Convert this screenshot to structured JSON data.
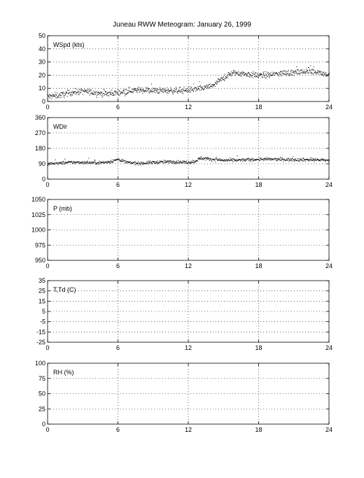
{
  "title": "Juneau RWW Meteogram:    January 26, 1999",
  "chart_data": [
    {
      "type": "scatter",
      "label": "WSpd (kts)",
      "ylim": [
        0,
        50
      ],
      "yticks": [
        0,
        10,
        20,
        30,
        40,
        50
      ],
      "xlim": [
        0,
        24
      ],
      "xticks": [
        0,
        6,
        12,
        18,
        24
      ],
      "grid": true,
      "color": "#000000",
      "trend": [
        [
          0,
          4
        ],
        [
          1,
          5
        ],
        [
          2,
          7
        ],
        [
          3,
          8
        ],
        [
          4,
          7
        ],
        [
          5,
          6
        ],
        [
          6,
          7
        ],
        [
          7,
          8.5
        ],
        [
          8,
          9
        ],
        [
          9,
          8.5
        ],
        [
          10,
          8.5
        ],
        [
          11,
          8.5
        ],
        [
          12,
          9
        ],
        [
          13,
          10
        ],
        [
          14,
          12
        ],
        [
          15,
          18
        ],
        [
          15.5,
          21
        ],
        [
          16,
          22
        ],
        [
          17,
          21
        ],
        [
          18,
          20
        ],
        [
          19,
          20.5
        ],
        [
          20,
          22
        ],
        [
          21,
          22
        ],
        [
          22,
          23
        ],
        [
          23,
          23
        ],
        [
          24,
          20
        ]
      ],
      "spread": 2.2
    },
    {
      "type": "scatter",
      "label": "WDir",
      "ylim": [
        0,
        360
      ],
      "yticks": [
        0,
        90,
        180,
        270,
        360
      ],
      "xlim": [
        0,
        24
      ],
      "xticks": [
        0,
        6,
        12,
        18,
        24
      ],
      "grid": true,
      "color": "#000000",
      "trend": [
        [
          0,
          92
        ],
        [
          1,
          95
        ],
        [
          2,
          100
        ],
        [
          3,
          100
        ],
        [
          4,
          98
        ],
        [
          5,
          100
        ],
        [
          5.5,
          108
        ],
        [
          6,
          118
        ],
        [
          6.5,
          105
        ],
        [
          7,
          97
        ],
        [
          8,
          95
        ],
        [
          9,
          100
        ],
        [
          10,
          103
        ],
        [
          11,
          103
        ],
        [
          12,
          100
        ],
        [
          12.5,
          105
        ],
        [
          13,
          125
        ],
        [
          14,
          118
        ],
        [
          15,
          112
        ],
        [
          16,
          112
        ],
        [
          17,
          115
        ],
        [
          18,
          118
        ],
        [
          19,
          118
        ],
        [
          20,
          117
        ],
        [
          21,
          116
        ],
        [
          22,
          116
        ],
        [
          23,
          115
        ],
        [
          24,
          112
        ]
      ],
      "spread": 9
    },
    {
      "type": "scatter",
      "label": "P (mb)",
      "ylim": [
        950,
        1050
      ],
      "yticks": [
        950,
        975,
        1000,
        1025,
        1050
      ],
      "xlim": [
        0,
        24
      ],
      "xticks": [
        0,
        6,
        12,
        18,
        24
      ],
      "grid": true
    },
    {
      "type": "scatter",
      "label": "T,Td (C)",
      "ylim": [
        -25,
        35
      ],
      "yticks": [
        -25,
        -15,
        -5,
        5,
        15,
        25,
        35
      ],
      "xlim": [
        0,
        24
      ],
      "xticks": [
        0,
        6,
        12,
        18,
        24
      ],
      "grid": true
    },
    {
      "type": "scatter",
      "label": "RH (%)",
      "ylim": [
        0,
        100
      ],
      "yticks": [
        0,
        25,
        50,
        75,
        100
      ],
      "xlim": [
        0,
        24
      ],
      "xticks": [
        0,
        6,
        12,
        18,
        24
      ],
      "grid": true
    }
  ]
}
